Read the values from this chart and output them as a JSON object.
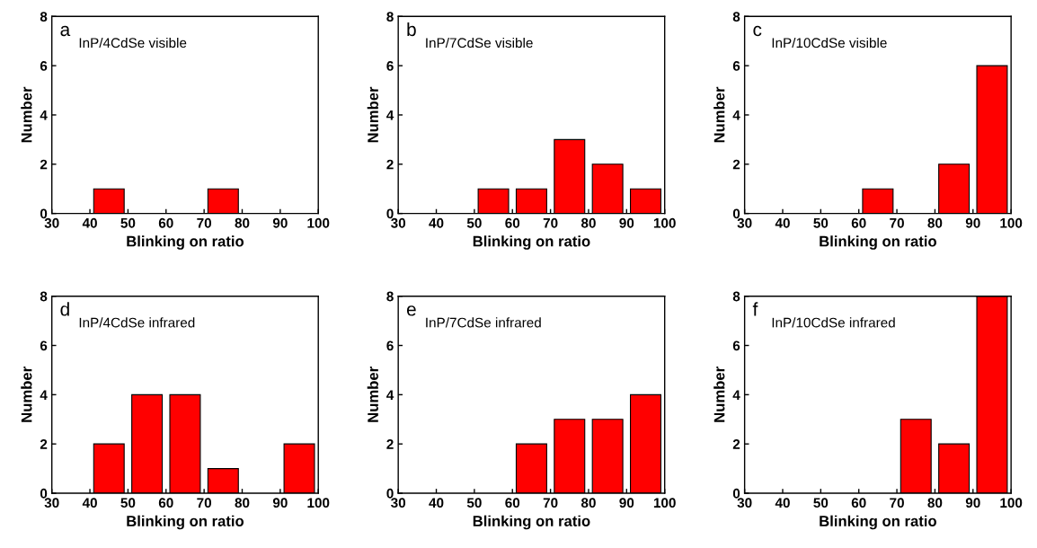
{
  "chart_data": [
    {
      "type": "bar",
      "x": [
        45,
        75
      ],
      "values": [
        1,
        1
      ],
      "color": "#ff0000",
      "xlabel": "Blinking on ratio",
      "ylabel": "Number",
      "xlim": [
        30,
        100
      ],
      "xticks": [
        30,
        40,
        50,
        60,
        70,
        80,
        90,
        100
      ],
      "ylim": [
        0,
        8
      ],
      "yticks": [
        0,
        2,
        4,
        6,
        8
      ],
      "grid": false,
      "annotations": [
        "a",
        "InP/4CdSe visible"
      ]
    },
    {
      "type": "bar",
      "x": [
        55,
        65,
        75,
        85,
        95
      ],
      "values": [
        1,
        1,
        3,
        2,
        1
      ],
      "color": "#ff0000",
      "xlabel": "Blinking on ratio",
      "ylabel": "Number",
      "xlim": [
        30,
        100
      ],
      "xticks": [
        30,
        40,
        50,
        60,
        70,
        80,
        90,
        100
      ],
      "ylim": [
        0,
        8
      ],
      "yticks": [
        0,
        2,
        4,
        6,
        8
      ],
      "grid": false,
      "annotations": [
        "b",
        "InP/7CdSe visible"
      ]
    },
    {
      "type": "bar",
      "x": [
        65,
        85,
        95
      ],
      "values": [
        1,
        2,
        6
      ],
      "color": "#ff0000",
      "xlabel": "Blinking on ratio",
      "ylabel": "Number",
      "xlim": [
        30,
        100
      ],
      "xticks": [
        30,
        40,
        50,
        60,
        70,
        80,
        90,
        100
      ],
      "ylim": [
        0,
        8
      ],
      "yticks": [
        0,
        2,
        4,
        6,
        8
      ],
      "grid": false,
      "annotations": [
        "c",
        "InP/10CdSe visible"
      ]
    },
    {
      "type": "bar",
      "x": [
        45,
        55,
        65,
        75,
        95
      ],
      "values": [
        2,
        4,
        4,
        1,
        2
      ],
      "color": "#ff0000",
      "xlabel": "Blinking on ratio",
      "ylabel": "Number",
      "xlim": [
        30,
        100
      ],
      "xticks": [
        30,
        40,
        50,
        60,
        70,
        80,
        90,
        100
      ],
      "ylim": [
        0,
        8
      ],
      "yticks": [
        0,
        2,
        4,
        6,
        8
      ],
      "grid": false,
      "annotations": [
        "d",
        "InP/4CdSe infrared"
      ]
    },
    {
      "type": "bar",
      "x": [
        65,
        75,
        85,
        95
      ],
      "values": [
        2,
        3,
        3,
        4
      ],
      "color": "#ff0000",
      "xlabel": "Blinking on ratio",
      "ylabel": "Number",
      "xlim": [
        30,
        100
      ],
      "xticks": [
        30,
        40,
        50,
        60,
        70,
        80,
        90,
        100
      ],
      "ylim": [
        0,
        8
      ],
      "yticks": [
        0,
        2,
        4,
        6,
        8
      ],
      "grid": false,
      "annotations": [
        "e",
        "InP/7CdSe infrared"
      ]
    },
    {
      "type": "bar",
      "x": [
        75,
        85,
        95
      ],
      "values": [
        3,
        2,
        8
      ],
      "color": "#ff0000",
      "xlabel": "Blinking on ratio",
      "ylabel": "Number",
      "xlim": [
        30,
        100
      ],
      "xticks": [
        30,
        40,
        50,
        60,
        70,
        80,
        90,
        100
      ],
      "ylim": [
        0,
        8
      ],
      "yticks": [
        0,
        2,
        4,
        6,
        8
      ],
      "grid": false,
      "annotations": [
        "f",
        "InP/10CdSe infrared"
      ]
    }
  ]
}
